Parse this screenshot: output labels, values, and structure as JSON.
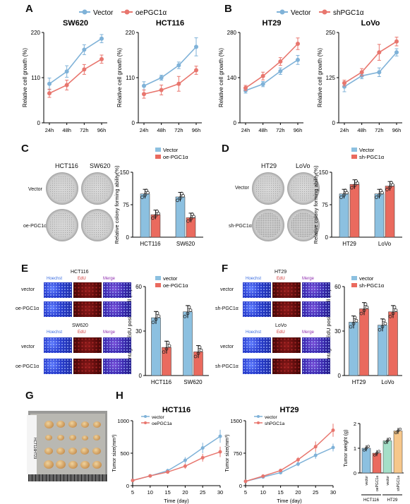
{
  "colors": {
    "blue": "#7fb2d8",
    "red": "#e8766e",
    "bar_blue": "#8cc0e0",
    "bar_red": "#ea6a5e",
    "bar_green": "#a4dfc8",
    "bar_orange": "#f6c78b"
  },
  "panelA": {
    "label": "A",
    "legend": [
      "Vector",
      "oePGC1α"
    ],
    "charts": [
      {
        "title": "SW620",
        "ylabel": "Relative cell growth (%)",
        "yticks": [
          "0",
          "110",
          "220"
        ],
        "xticks": [
          "24h",
          "48h",
          "72h",
          "96h"
        ]
      },
      {
        "title": "HCT116",
        "ylabel": "Relative cell growth (%)",
        "yticks": [
          "0",
          "110",
          "220"
        ],
        "xticks": [
          "24h",
          "48h",
          "72h",
          "96h"
        ]
      }
    ]
  },
  "panelB": {
    "label": "B",
    "legend": [
      "Vector",
      "shPGC1α"
    ],
    "charts": [
      {
        "title": "HT29",
        "ylabel": "Relative cell growth (%)",
        "yticks": [
          "0",
          "140",
          "280"
        ],
        "xticks": [
          "24h",
          "48h",
          "72h",
          "96h"
        ]
      },
      {
        "title": "LoVo",
        "ylabel": "Relative cell growth (%)",
        "yticks": [
          "0",
          "125",
          "250"
        ],
        "xticks": [
          "24h",
          "48h",
          "72h",
          "96h"
        ]
      }
    ]
  },
  "chart_data": [
    {
      "type": "line",
      "title": "SW620",
      "x": [
        "24h",
        "48h",
        "72h",
        "96h"
      ],
      "ylim": [
        0,
        220
      ],
      "series": [
        {
          "name": "Vector",
          "values": [
            95,
            125,
            178,
            205
          ],
          "err": [
            14,
            14,
            12,
            10
          ]
        },
        {
          "name": "oePGC1α",
          "values": [
            72,
            92,
            130,
            155
          ],
          "err": [
            10,
            12,
            12,
            10
          ]
        }
      ]
    },
    {
      "type": "line",
      "title": "HCT116",
      "x": [
        "24h",
        "48h",
        "72h",
        "96h"
      ],
      "ylim": [
        0,
        220
      ],
      "series": [
        {
          "name": "Vector",
          "values": [
            90,
            110,
            140,
            185
          ],
          "err": [
            10,
            6,
            8,
            22
          ]
        },
        {
          "name": "oePGC1α",
          "values": [
            70,
            80,
            95,
            128
          ],
          "err": [
            10,
            12,
            18,
            10
          ]
        }
      ]
    },
    {
      "type": "line",
      "title": "HT29",
      "x": [
        "24h",
        "48h",
        "72h",
        "96h"
      ],
      "ylim": [
        0,
        280
      ],
      "series": [
        {
          "name": "Vector",
          "values": [
            100,
            120,
            160,
            195
          ],
          "err": [
            8,
            8,
            10,
            14
          ]
        },
        {
          "name": "shPGC1α",
          "values": [
            108,
            145,
            190,
            245
          ],
          "err": [
            8,
            12,
            12,
            18
          ]
        }
      ]
    },
    {
      "type": "line",
      "title": "LoVo",
      "x": [
        "24h",
        "48h",
        "72h",
        "96h"
      ],
      "ylim": [
        0,
        250
      ],
      "series": [
        {
          "name": "Vector",
          "values": [
            100,
            130,
            140,
            195
          ],
          "err": [
            14,
            8,
            12,
            10
          ]
        },
        {
          "name": "shPGC1α",
          "values": [
            110,
            140,
            195,
            225
          ],
          "err": [
            8,
            10,
            22,
            12
          ]
        }
      ]
    },
    {
      "type": "bar",
      "categories": [
        "HCT116",
        "SW620"
      ],
      "ylim": [
        0,
        150
      ],
      "ylabel": "Relative colony forming ability(%)",
      "series": [
        {
          "name": "Vector",
          "values": [
            100,
            93
          ]
        },
        {
          "name": "oe-PGC1α",
          "values": [
            52,
            45
          ]
        }
      ]
    },
    {
      "type": "bar",
      "categories": [
        "HT29",
        "LoVo"
      ],
      "ylim": [
        0,
        150
      ],
      "ylabel": "Relative colony forming ability(%)",
      "series": [
        {
          "name": "Vector",
          "values": [
            100,
            100
          ]
        },
        {
          "name": "sh-PGC1α",
          "values": [
            122,
            118
          ]
        }
      ]
    },
    {
      "type": "bar",
      "categories": [
        "HCT116",
        "SW620"
      ],
      "ylim": [
        0,
        60
      ],
      "ylabel": "Percentage of EdU positive cell (%)",
      "series": [
        {
          "name": "vector",
          "values": [
            39,
            43
          ]
        },
        {
          "name": "oe-PGC1α",
          "values": [
            19,
            16
          ]
        }
      ]
    },
    {
      "type": "bar",
      "categories": [
        "HT29",
        "LoVo"
      ],
      "ylim": [
        0,
        60
      ],
      "ylabel": "Percentage of EdU positive cell (%)",
      "series": [
        {
          "name": "vector",
          "values": [
            36,
            34
          ]
        },
        {
          "name": "sh-PGC1α",
          "values": [
            45,
            43
          ]
        }
      ]
    },
    {
      "type": "line",
      "title": "HCT116",
      "x": [
        5,
        10,
        15,
        20,
        25,
        30
      ],
      "ylim": [
        0,
        1000
      ],
      "xlabel": "Time (day)",
      "ylabel": "Tumor size(mm³)",
      "series": [
        {
          "name": "vector",
          "values": [
            80,
            150,
            230,
            390,
            580,
            760
          ],
          "err": [
            10,
            15,
            30,
            50,
            80,
            100
          ]
        },
        {
          "name": "oePGC1a",
          "values": [
            80,
            150,
            210,
            300,
            430,
            520
          ],
          "err": [
            10,
            15,
            25,
            40,
            60,
            80
          ]
        }
      ]
    },
    {
      "type": "line",
      "title": "HT29",
      "x": [
        5,
        10,
        15,
        20,
        25,
        30
      ],
      "ylim": [
        0,
        1500
      ],
      "xlabel": "Time (day)",
      "ylabel": "Tumor size(mm³)",
      "series": [
        {
          "name": "vector",
          "values": [
            100,
            200,
            300,
            500,
            700,
            880
          ],
          "err": [
            10,
            20,
            30,
            50,
            80,
            90
          ]
        },
        {
          "name": "shPGC1a",
          "values": [
            100,
            220,
            350,
            600,
            900,
            1280
          ],
          "err": [
            10,
            20,
            40,
            60,
            120,
            150
          ]
        }
      ]
    },
    {
      "type": "bar",
      "categories": [
        "vector",
        "oePGC1a",
        "vector",
        "shPGC1a"
      ],
      "ylim": [
        0,
        2
      ],
      "ylabel": "Tumor weight (g)",
      "values": [
        1.0,
        0.8,
        1.3,
        1.7
      ],
      "groups": [
        "HCT116",
        "HT29"
      ]
    }
  ],
  "panelC": {
    "label": "C",
    "col_labels": [
      "HCT116",
      "SW620"
    ],
    "row_labels": [
      "Vector",
      "oe-PGC1α"
    ],
    "legend": [
      "Vector",
      "oe-PGC1α"
    ],
    "yticks": [
      "0",
      "75",
      "150"
    ],
    "ylabel": "Relative colony forming ability(%)",
    "xcats": [
      "HCT116",
      "SW620"
    ]
  },
  "panelD": {
    "label": "D",
    "col_labels": [
      "HT29",
      "LoVo"
    ],
    "row_labels": [
      "Vector",
      "sh-PGC1α"
    ],
    "legend": [
      "Vector",
      "sh-PGC1α"
    ],
    "yticks": [
      "0",
      "75",
      "150"
    ],
    "ylabel": "Relative colony forming ability(%)",
    "xcats": [
      "HT29",
      "LoVo"
    ]
  },
  "panelE": {
    "label": "E",
    "groups": [
      {
        "title": "HCT116",
        "cols": [
          "Hoechst",
          "EdU",
          "Merge"
        ],
        "rows": [
          "vector",
          "oe-PGC1α"
        ]
      },
      {
        "title": "SW620",
        "cols": [
          "Hoechst",
          "EdU",
          "Merge"
        ],
        "rows": [
          "vector",
          "oe-PGC1α"
        ]
      }
    ],
    "legend": [
      "vector",
      "oe-PGC1α"
    ],
    "yticks": [
      "0",
      "30",
      "60"
    ],
    "ylabel": "Percentage of EdU positive cell (%)",
    "xcats": [
      "HCT116",
      "SW620"
    ]
  },
  "panelF": {
    "label": "F",
    "groups": [
      {
        "title": "HT29",
        "cols": [
          "Hoechst",
          "EdU",
          "Merge"
        ],
        "rows": [
          "vector",
          "sh-PGC1α"
        ]
      },
      {
        "title": "LoVo",
        "cols": [
          "Hoechst",
          "EdU",
          "Merge"
        ],
        "rows": [
          "vector",
          "sh-PGC1α"
        ]
      }
    ],
    "legend": [
      "vector",
      "sh-PGC1α"
    ],
    "yticks": [
      "0",
      "30",
      "60"
    ],
    "ylabel": "Percentage of EdU positive cell (%)",
    "xcats": [
      "HT29",
      "LoVo"
    ]
  },
  "panelG": {
    "label": "G",
    "row_groups": [
      "HCT116",
      "HT29"
    ],
    "row_sub": [
      "vector",
      "oePGC1a",
      "vector",
      "shPGC1a"
    ]
  },
  "panelH": {
    "label": "H",
    "c1": {
      "title": "HCT116",
      "legend": [
        "vector",
        "oePGC1a"
      ],
      "yticks": [
        "0",
        "500",
        "1000"
      ],
      "xticks": [
        "5",
        "10",
        "15",
        "20",
        "25",
        "30"
      ],
      "xlabel": "Time (day)",
      "ylabel": "Tumor size(mm³)"
    },
    "c2": {
      "title": "HT29",
      "legend": [
        "vector",
        "shPGC1a"
      ],
      "yticks": [
        "0",
        "750",
        "1500"
      ],
      "xticks": [
        "5",
        "10",
        "15",
        "20",
        "25",
        "30"
      ],
      "xlabel": "Time (day)",
      "ylabel": "Tumor size(mm³)"
    },
    "c3": {
      "ylabel": "Tumor weight (g)",
      "yticks": [
        "0",
        "1",
        "2"
      ],
      "xcats": [
        "vector",
        "oePGC1a",
        "vector",
        "shPGC1a"
      ],
      "groups": [
        "HCT116",
        "HT29"
      ]
    }
  }
}
